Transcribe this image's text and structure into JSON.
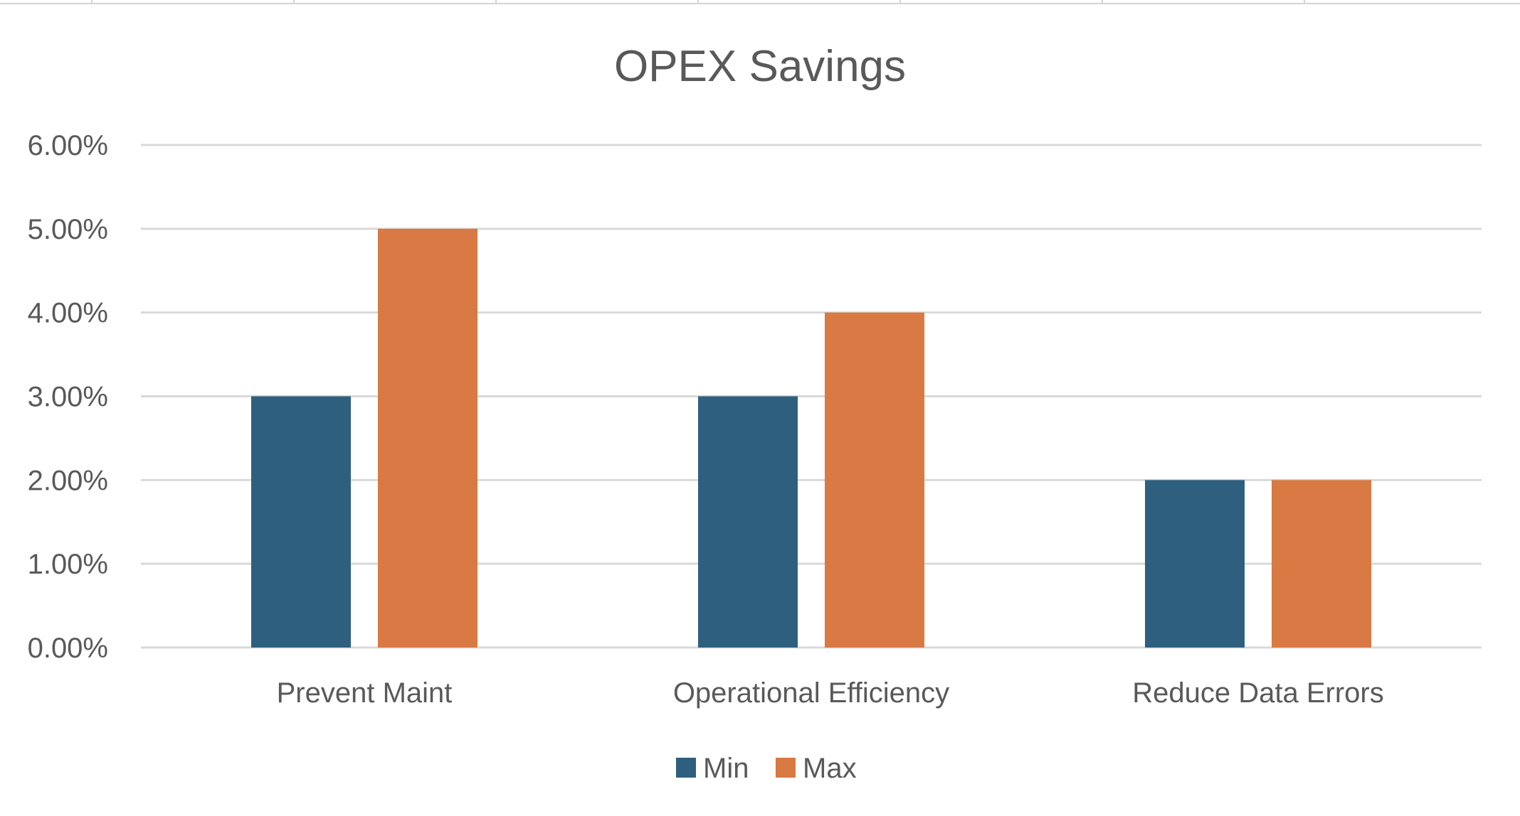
{
  "chart_data": {
    "type": "bar",
    "title": "OPEX Savings",
    "categories": [
      "Prevent Maint",
      "Operational Efficiency",
      "Reduce Data Errors"
    ],
    "series": [
      {
        "name": "Min",
        "values": [
          0.03,
          0.03,
          0.02
        ],
        "color": "#2e5f7f"
      },
      {
        "name": "Max",
        "values": [
          0.05,
          0.04,
          0.02
        ],
        "color": "#d97943"
      }
    ],
    "yticks": [
      "0.00%",
      "1.00%",
      "2.00%",
      "3.00%",
      "4.00%",
      "5.00%",
      "6.00%"
    ],
    "ylim": [
      0,
      0.06
    ],
    "xlabel": "",
    "ylabel": "",
    "grid": true,
    "legend_position": "bottom"
  }
}
